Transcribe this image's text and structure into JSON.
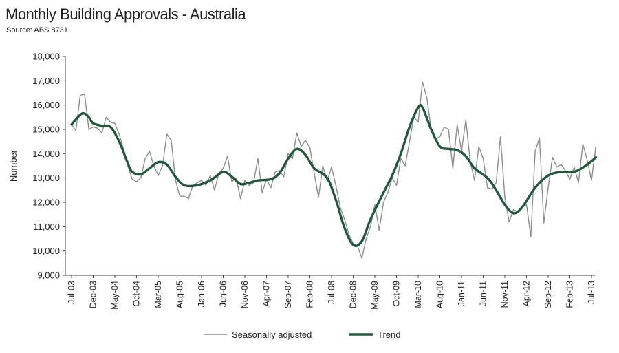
{
  "title": "Monthly Building Approvals - Australia",
  "subtitle": "Source: ABS 8731",
  "colors": {
    "seasonal": "#8c8c8c",
    "trend": "#1e5a3a",
    "axis": "#444444"
  },
  "chart_data": {
    "type": "line",
    "title": "Monthly Building Approvals - Australia",
    "subtitle": "Source: ABS 8731",
    "ylabel": "Number",
    "xlabel": "",
    "ylim": [
      9000,
      18000
    ],
    "y_ticks": [
      9000,
      10000,
      11000,
      12000,
      13000,
      14000,
      15000,
      16000,
      17000,
      18000
    ],
    "y_tick_labels": [
      "9,000",
      "10,000",
      "11,000",
      "12,000",
      "13,000",
      "14,000",
      "15,000",
      "16,000",
      "17,000",
      "18,000"
    ],
    "x_start": "2003-07",
    "x_end": "2013-07",
    "x_ticks": [
      "2003-07",
      "2003-12",
      "2004-05",
      "2004-10",
      "2005-03",
      "2005-08",
      "2006-01",
      "2006-06",
      "2006-11",
      "2007-04",
      "2007-09",
      "2008-02",
      "2008-07",
      "2008-12",
      "2009-05",
      "2009-10",
      "2010-03",
      "2010-08",
      "2011-01",
      "2011-06",
      "2011-11",
      "2012-04",
      "2012-09",
      "2013-02",
      "2013-07"
    ],
    "x_tick_labels": [
      "Jul-03",
      "Dec-03",
      "May-04",
      "Oct-04",
      "Mar-05",
      "Aug-05",
      "Jan-06",
      "Jun-06",
      "Nov-06",
      "Apr-07",
      "Sep-07",
      "Feb-08",
      "Jul-08",
      "Dec-08",
      "May-09",
      "Oct-09",
      "Mar-10",
      "Aug-10",
      "Jan-11",
      "Jun-11",
      "Nov-11",
      "Apr-12",
      "Sep-12",
      "Feb-13",
      "Jul-13"
    ],
    "legend": {
      "placement": "bottom-center",
      "entries": [
        "Seasonally adjusted",
        "Trend"
      ]
    },
    "grid": false,
    "series": [
      {
        "name": "Seasonally adjusted",
        "points": [
          [
            "2003-07",
            15200
          ],
          [
            "2003-08",
            14950
          ],
          [
            "2003-09",
            16400
          ],
          [
            "2003-10",
            16450
          ],
          [
            "2003-11",
            15000
          ],
          [
            "2003-12",
            15100
          ],
          [
            "2004-01",
            15050
          ],
          [
            "2004-02",
            14850
          ],
          [
            "2004-03",
            15500
          ],
          [
            "2004-04",
            15300
          ],
          [
            "2004-05",
            15250
          ],
          [
            "2004-06",
            14800
          ],
          [
            "2004-07",
            14200
          ],
          [
            "2004-08",
            13500
          ],
          [
            "2004-09",
            12950
          ],
          [
            "2004-10",
            12850
          ],
          [
            "2004-11",
            13000
          ],
          [
            "2004-12",
            13800
          ],
          [
            "2005-01",
            14100
          ],
          [
            "2005-02",
            13500
          ],
          [
            "2005-03",
            13100
          ],
          [
            "2005-04",
            13500
          ],
          [
            "2005-05",
            14800
          ],
          [
            "2005-06",
            14550
          ],
          [
            "2005-07",
            12900
          ],
          [
            "2005-08",
            12250
          ],
          [
            "2005-09",
            12250
          ],
          [
            "2005-10",
            12150
          ],
          [
            "2005-11",
            12700
          ],
          [
            "2005-12",
            12800
          ],
          [
            "2006-01",
            12900
          ],
          [
            "2006-02",
            12700
          ],
          [
            "2006-03",
            13100
          ],
          [
            "2006-04",
            12500
          ],
          [
            "2006-05",
            13200
          ],
          [
            "2006-06",
            13400
          ],
          [
            "2006-07",
            13900
          ],
          [
            "2006-08",
            12850
          ],
          [
            "2006-09",
            13000
          ],
          [
            "2006-10",
            12150
          ],
          [
            "2006-11",
            12900
          ],
          [
            "2006-12",
            12700
          ],
          [
            "2007-01",
            12800
          ],
          [
            "2007-02",
            13800
          ],
          [
            "2007-03",
            12400
          ],
          [
            "2007-04",
            12950
          ],
          [
            "2007-05",
            12600
          ],
          [
            "2007-06",
            13250
          ],
          [
            "2007-07",
            13300
          ],
          [
            "2007-08",
            13050
          ],
          [
            "2007-09",
            14000
          ],
          [
            "2007-10",
            13800
          ],
          [
            "2007-11",
            14850
          ],
          [
            "2007-12",
            14300
          ],
          [
            "2008-01",
            14550
          ],
          [
            "2008-02",
            14250
          ],
          [
            "2008-03",
            13200
          ],
          [
            "2008-04",
            12200
          ],
          [
            "2008-05",
            13500
          ],
          [
            "2008-06",
            12850
          ],
          [
            "2008-07",
            13450
          ],
          [
            "2008-08",
            12700
          ],
          [
            "2008-09",
            11800
          ],
          [
            "2008-10",
            11300
          ],
          [
            "2008-11",
            10700
          ],
          [
            "2008-12",
            10300
          ],
          [
            "2009-01",
            10200
          ],
          [
            "2009-02",
            9700
          ],
          [
            "2009-03",
            10500
          ],
          [
            "2009-04",
            11000
          ],
          [
            "2009-05",
            11900
          ],
          [
            "2009-06",
            10850
          ],
          [
            "2009-07",
            12000
          ],
          [
            "2009-08",
            12400
          ],
          [
            "2009-09",
            13000
          ],
          [
            "2009-10",
            12700
          ],
          [
            "2009-11",
            13800
          ],
          [
            "2009-12",
            13500
          ],
          [
            "2010-01",
            14500
          ],
          [
            "2010-02",
            15500
          ],
          [
            "2010-03",
            15300
          ],
          [
            "2010-04",
            16950
          ],
          [
            "2010-05",
            16300
          ],
          [
            "2010-06",
            15000
          ],
          [
            "2010-07",
            14600
          ],
          [
            "2010-08",
            14700
          ],
          [
            "2010-09",
            15100
          ],
          [
            "2010-10",
            15000
          ],
          [
            "2010-11",
            13400
          ],
          [
            "2010-12",
            15200
          ],
          [
            "2011-01",
            14100
          ],
          [
            "2011-02",
            15400
          ],
          [
            "2011-03",
            13700
          ],
          [
            "2011-04",
            12900
          ],
          [
            "2011-05",
            14300
          ],
          [
            "2011-06",
            13800
          ],
          [
            "2011-07",
            12600
          ],
          [
            "2011-08",
            12550
          ],
          [
            "2011-09",
            12800
          ],
          [
            "2011-10",
            14700
          ],
          [
            "2011-11",
            12200
          ],
          [
            "2011-12",
            11200
          ],
          [
            "2012-01",
            11700
          ],
          [
            "2012-02",
            11600
          ],
          [
            "2012-03",
            11800
          ],
          [
            "2012-04",
            11900
          ],
          [
            "2012-05",
            10600
          ],
          [
            "2012-06",
            14100
          ],
          [
            "2012-07",
            14650
          ],
          [
            "2012-08",
            11150
          ],
          [
            "2012-09",
            12600
          ],
          [
            "2012-10",
            13850
          ],
          [
            "2012-11",
            13450
          ],
          [
            "2012-12",
            13550
          ],
          [
            "2013-01",
            13300
          ],
          [
            "2013-02",
            12950
          ],
          [
            "2013-03",
            13450
          ],
          [
            "2013-04",
            12800
          ],
          [
            "2013-05",
            14400
          ],
          [
            "2013-06",
            13750
          ],
          [
            "2013-07",
            12900
          ],
          [
            "2013-08",
            14300
          ]
        ]
      },
      {
        "name": "Trend",
        "points": [
          [
            "2003-07",
            15200
          ],
          [
            "2003-09",
            15600
          ],
          [
            "2003-10",
            15650
          ],
          [
            "2003-11",
            15500
          ],
          [
            "2003-12",
            15250
          ],
          [
            "2004-02",
            15150
          ],
          [
            "2004-04",
            15100
          ],
          [
            "2004-06",
            14500
          ],
          [
            "2004-08",
            13600
          ],
          [
            "2004-09",
            13250
          ],
          [
            "2004-11",
            13150
          ],
          [
            "2005-01",
            13400
          ],
          [
            "2005-03",
            13650
          ],
          [
            "2005-05",
            13550
          ],
          [
            "2005-07",
            13050
          ],
          [
            "2005-09",
            12700
          ],
          [
            "2005-12",
            12700
          ],
          [
            "2006-03",
            12900
          ],
          [
            "2006-06",
            13250
          ],
          [
            "2006-08",
            13050
          ],
          [
            "2006-10",
            12750
          ],
          [
            "2006-12",
            12800
          ],
          [
            "2007-02",
            12900
          ],
          [
            "2007-05",
            12950
          ],
          [
            "2007-07",
            13200
          ],
          [
            "2007-09",
            13800
          ],
          [
            "2007-11",
            14200
          ],
          [
            "2008-01",
            13950
          ],
          [
            "2008-03",
            13400
          ],
          [
            "2008-06",
            13000
          ],
          [
            "2008-08",
            12100
          ],
          [
            "2008-10",
            10950
          ],
          [
            "2008-12",
            10250
          ],
          [
            "2009-02",
            10400
          ],
          [
            "2009-04",
            11300
          ],
          [
            "2009-07",
            12400
          ],
          [
            "2009-09",
            13100
          ],
          [
            "2009-11",
            14000
          ],
          [
            "2010-01",
            15100
          ],
          [
            "2010-03",
            15900
          ],
          [
            "2010-04",
            15900
          ],
          [
            "2010-06",
            15000
          ],
          [
            "2010-08",
            14300
          ],
          [
            "2010-10",
            14200
          ],
          [
            "2010-12",
            14150
          ],
          [
            "2011-02",
            13900
          ],
          [
            "2011-04",
            13400
          ],
          [
            "2011-07",
            13000
          ],
          [
            "2011-09",
            12500
          ],
          [
            "2011-11",
            11900
          ],
          [
            "2012-01",
            11550
          ],
          [
            "2012-03",
            11800
          ],
          [
            "2012-06",
            12600
          ],
          [
            "2012-09",
            13100
          ],
          [
            "2012-12",
            13250
          ],
          [
            "2013-03",
            13250
          ],
          [
            "2013-06",
            13550
          ],
          [
            "2013-08",
            13850
          ]
        ]
      }
    ]
  }
}
